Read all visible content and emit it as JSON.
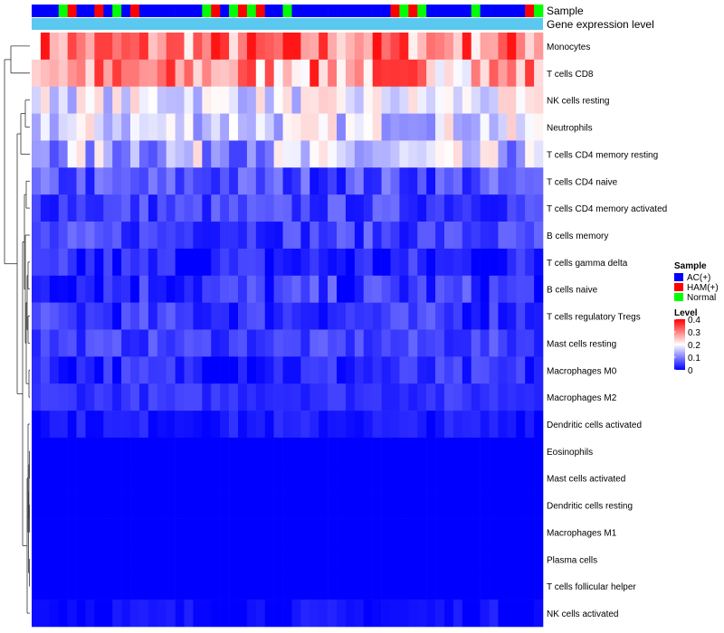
{
  "chart_data": {
    "type": "heatmap",
    "annotation_tracks": [
      "Sample",
      "Gene expression level"
    ],
    "sample_groups": [
      "AC(+)",
      "AC(+)",
      "AC(+)",
      "Normal",
      "HAM(+)",
      "AC(+)",
      "AC(+)",
      "HAM(+)",
      "AC(+)",
      "Normal",
      "AC(+)",
      "HAM(+)",
      "AC(+)",
      "AC(+)",
      "AC(+)",
      "AC(+)",
      "AC(+)",
      "AC(+)",
      "AC(+)",
      "Normal",
      "HAM(+)",
      "AC(+)",
      "Normal",
      "HAM(+)",
      "Normal",
      "HAM(+)",
      "AC(+)",
      "AC(+)",
      "Normal",
      "AC(+)",
      "AC(+)",
      "AC(+)",
      "AC(+)",
      "AC(+)",
      "AC(+)",
      "AC(+)",
      "AC(+)",
      "AC(+)",
      "AC(+)",
      "AC(+)",
      "HAM(+)",
      "Normal",
      "HAM(+)",
      "Normal",
      "AC(+)",
      "AC(+)",
      "AC(+)",
      "AC(+)",
      "AC(+)",
      "Normal",
      "AC(+)",
      "AC(+)",
      "AC(+)",
      "AC(+)",
      "AC(+)",
      "HAM(+)",
      "Normal"
    ],
    "rows": [
      "Monocytes",
      "T cells CD8",
      "NK cells resting",
      "Neutrophils",
      "T cells CD4 memory resting",
      "T cells CD4 naive",
      "T cells CD4 memory activated",
      "B cells memory",
      "T cells gamma delta",
      "B cells naive",
      "T cells regulatory  Tregs",
      "Mast cells resting",
      "Macrophages M0",
      "Macrophages M2",
      "Dendritic cells activated",
      "Eosinophils",
      "Mast cells activated",
      "Dendritic cells resting",
      "Macrophages M1",
      "Plasma cells",
      "T cells follicular helper",
      "NK cells activated"
    ],
    "row_mean_levels": [
      0.3,
      0.28,
      0.18,
      0.17,
      0.14,
      0.06,
      0.05,
      0.05,
      0.02,
      0.04,
      0.04,
      0.05,
      0.03,
      0.04,
      0.02,
      0.0,
      0.0,
      0.0,
      0.0,
      0.0,
      0.0,
      0.01
    ],
    "row_spread": [
      0.1,
      0.1,
      0.06,
      0.07,
      0.09,
      0.05,
      0.04,
      0.04,
      0.05,
      0.05,
      0.04,
      0.03,
      0.04,
      0.02,
      0.02,
      0.0,
      0.0,
      0.0,
      0.0,
      0.0,
      0.0,
      0.02
    ],
    "color_scale": {
      "min": 0,
      "max": 0.4,
      "low": "#0000ff",
      "mid": "#ffffff",
      "high": "#ff0000",
      "mid_value": 0.2
    },
    "legend": {
      "sample_title": "Sample",
      "sample_entries": [
        {
          "label": "AC(+)",
          "color": "#0000ff"
        },
        {
          "label": "HAM(+)",
          "color": "#ff0000"
        },
        {
          "label": "Normal",
          "color": "#00ff00"
        }
      ],
      "level_title": "Level",
      "level_ticks": [
        "0.4",
        "0.3",
        "0.2",
        "0.1",
        "0"
      ],
      "position": "right"
    },
    "expression_track_color": "#5bc8f0",
    "dendrogram": "rows clustered (hierarchical)"
  }
}
